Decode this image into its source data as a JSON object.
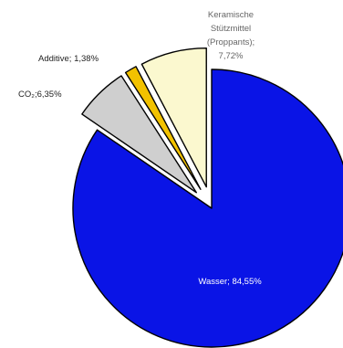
{
  "chart_data": {
    "type": "pie",
    "slices": [
      {
        "label": "Wasser",
        "value": 84.55,
        "value_text": "84,55%",
        "color": "#0a14e6",
        "label_color": "#ffffff",
        "exploded": false
      },
      {
        "label": "CO₂",
        "value": 6.35,
        "value_text": "6,35%",
        "color": "#cfcfcf",
        "label_color": "#222222",
        "exploded": true
      },
      {
        "label": "Additive",
        "value": 1.38,
        "value_text": "1,38%",
        "color": "#f2c200",
        "label_color": "#222222",
        "exploded": true
      },
      {
        "label": "Keramische Stützmittel (Proppants)",
        "value": 7.72,
        "value_text": "7,72%",
        "color": "#fbf8cf",
        "label_color": "#555555",
        "exploded": true
      }
    ],
    "labels_text": {
      "wasser": "Wasser; 84,55%",
      "co2": "CO₂;6,35%",
      "additive": "Additive; 1,38%",
      "keramik_line1": "Keramische",
      "keramik_line2": "Stützmittel",
      "keramik_line3": "(Proppants);",
      "keramik_line4": "7,72%"
    }
  }
}
